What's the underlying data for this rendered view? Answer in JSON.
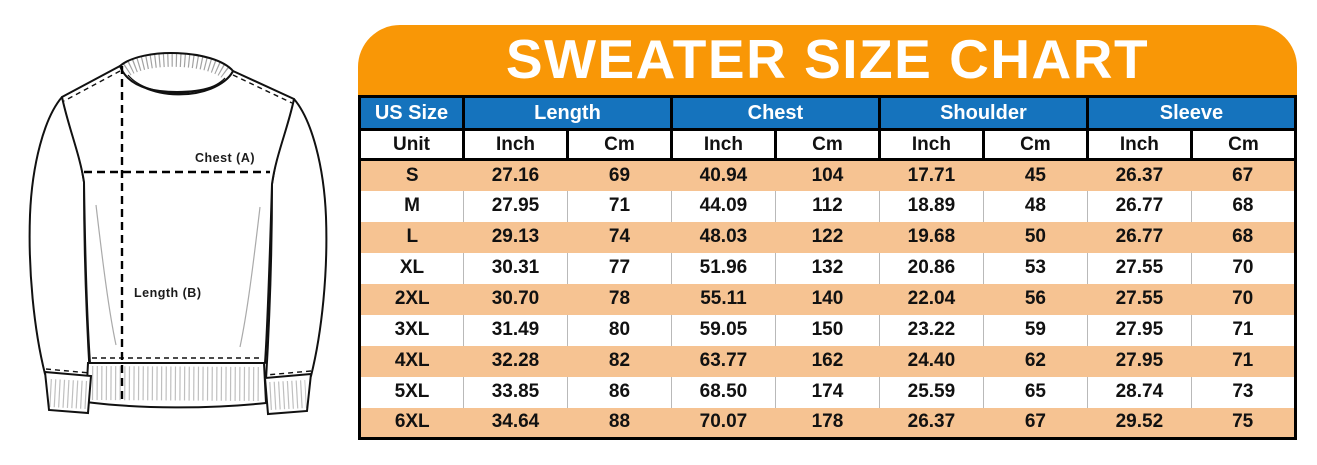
{
  "colors": {
    "banner_orange": "#f99706",
    "header_blue": "#1573bd",
    "row_peach": "#f6c392",
    "table_border": "#000000",
    "header_text": "#ffffff",
    "body_text": "#111111"
  },
  "diagram": {
    "chest_label": "Chest (A)",
    "length_label": "Length (B)"
  },
  "chart_data": {
    "type": "table",
    "title": "SWEATER SIZE CHART",
    "size_column_header": "US Size",
    "measure_groups": [
      "Length",
      "Chest",
      "Shoulder",
      "Sleeve"
    ],
    "unit_row_label": "Unit",
    "unit_headers": [
      "Inch",
      "Cm"
    ],
    "row_keys": [
      "size",
      "length_inch",
      "length_cm",
      "chest_inch",
      "chest_cm",
      "shoulder_inch",
      "shoulder_cm",
      "sleeve_inch",
      "sleeve_cm"
    ],
    "rows": [
      {
        "size": "S",
        "length_inch": "27.16",
        "length_cm": "69",
        "chest_inch": "40.94",
        "chest_cm": "104",
        "shoulder_inch": "17.71",
        "shoulder_cm": "45",
        "sleeve_inch": "26.37",
        "sleeve_cm": "67"
      },
      {
        "size": "M",
        "length_inch": "27.95",
        "length_cm": "71",
        "chest_inch": "44.09",
        "chest_cm": "112",
        "shoulder_inch": "18.89",
        "shoulder_cm": "48",
        "sleeve_inch": "26.77",
        "sleeve_cm": "68"
      },
      {
        "size": "L",
        "length_inch": "29.13",
        "length_cm": "74",
        "chest_inch": "48.03",
        "chest_cm": "122",
        "shoulder_inch": "19.68",
        "shoulder_cm": "50",
        "sleeve_inch": "26.77",
        "sleeve_cm": "68"
      },
      {
        "size": "XL",
        "length_inch": "30.31",
        "length_cm": "77",
        "chest_inch": "51.96",
        "chest_cm": "132",
        "shoulder_inch": "20.86",
        "shoulder_cm": "53",
        "sleeve_inch": "27.55",
        "sleeve_cm": "70"
      },
      {
        "size": "2XL",
        "length_inch": "30.70",
        "length_cm": "78",
        "chest_inch": "55.11",
        "chest_cm": "140",
        "shoulder_inch": "22.04",
        "shoulder_cm": "56",
        "sleeve_inch": "27.55",
        "sleeve_cm": "70"
      },
      {
        "size": "3XL",
        "length_inch": "31.49",
        "length_cm": "80",
        "chest_inch": "59.05",
        "chest_cm": "150",
        "shoulder_inch": "23.22",
        "shoulder_cm": "59",
        "sleeve_inch": "27.95",
        "sleeve_cm": "71"
      },
      {
        "size": "4XL",
        "length_inch": "32.28",
        "length_cm": "82",
        "chest_inch": "63.77",
        "chest_cm": "162",
        "shoulder_inch": "24.40",
        "shoulder_cm": "62",
        "sleeve_inch": "27.95",
        "sleeve_cm": "71"
      },
      {
        "size": "5XL",
        "length_inch": "33.85",
        "length_cm": "86",
        "chest_inch": "68.50",
        "chest_cm": "174",
        "shoulder_inch": "25.59",
        "shoulder_cm": "65",
        "sleeve_inch": "28.74",
        "sleeve_cm": "73"
      },
      {
        "size": "6XL",
        "length_inch": "34.64",
        "length_cm": "88",
        "chest_inch": "70.07",
        "chest_cm": "178",
        "shoulder_inch": "26.37",
        "shoulder_cm": "67",
        "sleeve_inch": "29.52",
        "sleeve_cm": "75"
      }
    ]
  }
}
